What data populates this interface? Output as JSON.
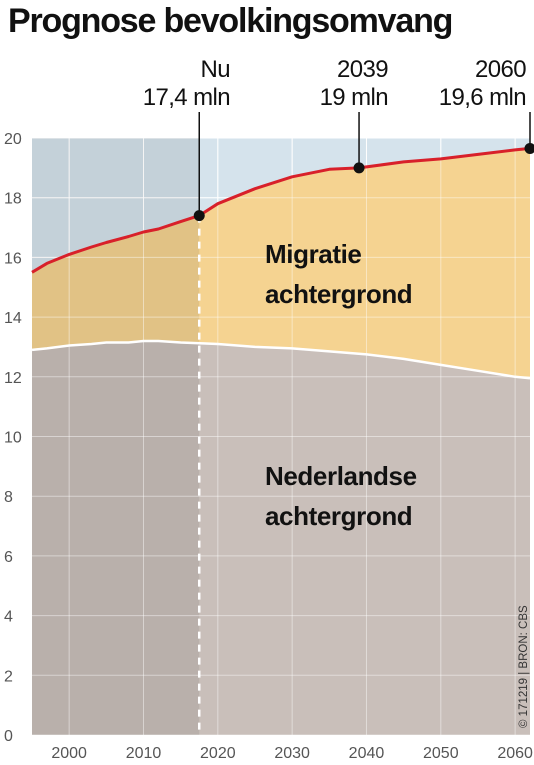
{
  "chart_data": {
    "type": "area",
    "title": "Prognose bevolkingsomvang",
    "xlim": [
      1995,
      2062
    ],
    "ylim": [
      0,
      20
    ],
    "x_ticks": [
      "2000",
      "2010",
      "2020",
      "2030",
      "2040",
      "2050",
      "2060"
    ],
    "y_ticks": [
      "0",
      "2",
      "4",
      "6",
      "8",
      "10",
      "12",
      "14",
      "16",
      "18",
      "20"
    ],
    "grid": true,
    "divider_year": 2017.5,
    "series": [
      {
        "name": "Nederlandse achtergrond",
        "color": "#c9bfba",
        "x": [
          1995,
          1997,
          2000,
          2003,
          2005,
          2008,
          2010,
          2012,
          2015,
          2018,
          2020,
          2025,
          2030,
          2035,
          2040,
          2045,
          2050,
          2055,
          2060,
          2062
        ],
        "y": [
          12.9,
          12.95,
          13.05,
          13.1,
          13.15,
          13.15,
          13.2,
          13.2,
          13.15,
          13.12,
          13.1,
          13.0,
          12.95,
          12.85,
          12.75,
          12.6,
          12.4,
          12.2,
          12.0,
          11.95
        ]
      },
      {
        "name": "Migratie achtergrond",
        "color": "#f5d391",
        "x": [
          1995,
          1997,
          2000,
          2003,
          2005,
          2008,
          2010,
          2012,
          2015,
          2017.5,
          2020,
          2025,
          2030,
          2035,
          2039,
          2045,
          2050,
          2055,
          2060,
          2062
        ],
        "y": [
          15.5,
          15.8,
          16.1,
          16.35,
          16.5,
          16.7,
          16.85,
          16.95,
          17.2,
          17.4,
          17.8,
          18.3,
          18.7,
          18.95,
          19.0,
          19.2,
          19.3,
          19.45,
          19.6,
          19.65
        ]
      }
    ],
    "regions": [
      {
        "label_line1": "Migratie",
        "label_line2": "achtergrond"
      },
      {
        "label_line1": "Nederlandse",
        "label_line2": "achtergrond"
      }
    ],
    "annotations": [
      {
        "x": 2017.5,
        "y": 17.4,
        "line1": "Nu",
        "line2": "17,4 mln"
      },
      {
        "x": 2039,
        "y": 19.0,
        "line1": "2039",
        "line2": "19 mln"
      },
      {
        "x": 2062,
        "y": 19.65,
        "line1": "2060",
        "line2": "19,6 mln"
      }
    ],
    "colors": {
      "total_line": "#d8202a",
      "background_upper": "#d5e3ec",
      "past_shade": "#00000014",
      "grid": "#ffffff",
      "nl_line": "#ffffff"
    },
    "credit": "© 171219 | BRON: CBS"
  }
}
